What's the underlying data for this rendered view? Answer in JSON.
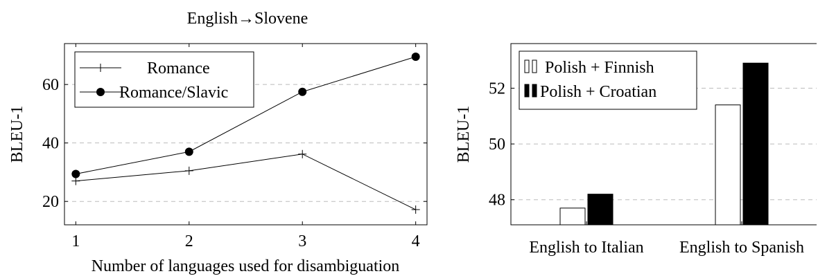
{
  "chart_data": [
    {
      "type": "line",
      "title": "English→Slovene",
      "xlabel": "Number of languages used for disambiguation",
      "ylabel": "BLEU-1",
      "x": [
        1,
        2,
        3,
        4
      ],
      "xlim": [
        0.9,
        4.1
      ],
      "ylim": [
        12,
        74
      ],
      "yticks": [
        20,
        40,
        60
      ],
      "grid": "horizontal dashed",
      "legend_position": "top-left",
      "series": [
        {
          "name": "Romance",
          "marker": "plus",
          "values": [
            27,
            30.5,
            36.2,
            17.2
          ]
        },
        {
          "name": "Romance/Slavic",
          "marker": "filled-circle",
          "values": [
            29.4,
            37,
            57.5,
            69.5
          ]
        }
      ]
    },
    {
      "type": "bar",
      "title": "",
      "xlabel": "",
      "ylabel": "BLEU-1",
      "categories": [
        "English to Italian",
        "English to Spanish"
      ],
      "ylim": [
        47.1,
        53.6
      ],
      "yticks": [
        48,
        50,
        52
      ],
      "grid": "horizontal dashed",
      "legend_position": "top-left",
      "series": [
        {
          "name": "Polish + Finnish",
          "color": "#ffffff",
          "values": [
            47.7,
            51.4
          ]
        },
        {
          "name": "Polish + Croatian",
          "color": "#000000",
          "values": [
            48.2,
            52.9
          ]
        }
      ]
    }
  ]
}
